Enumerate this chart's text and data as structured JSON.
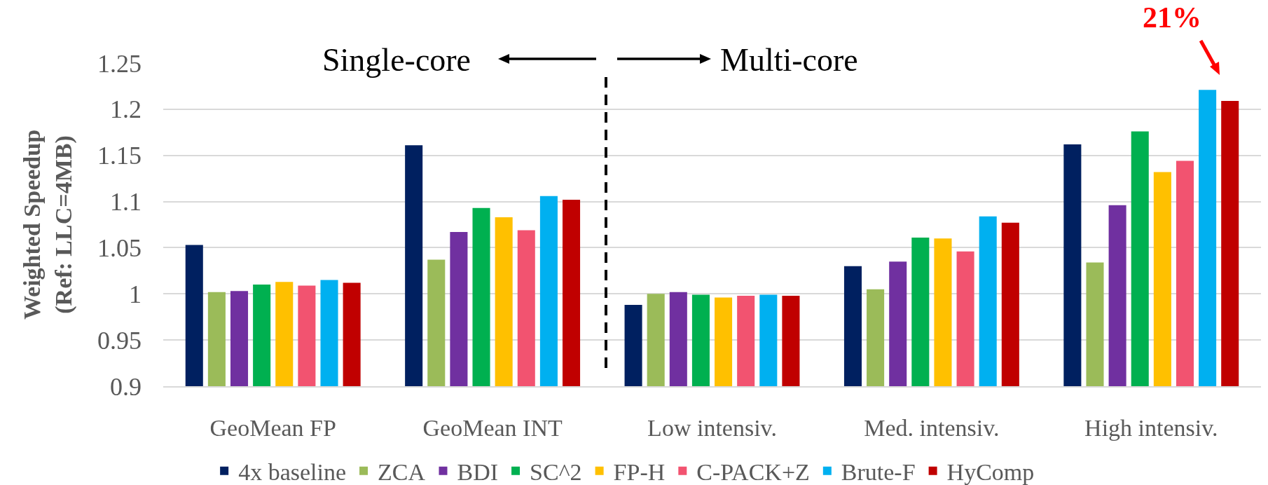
{
  "chart_data": {
    "type": "bar",
    "ylabel": "Weighted Speedup\n(Ref: LLC=4MB)",
    "categories": [
      "GeoMean FP",
      "GeoMean INT",
      "Low intensiv.",
      "Med. intensiv.",
      "High intensiv."
    ],
    "series": [
      {
        "name": "4x baseline",
        "color": "#002060",
        "values": [
          1.053,
          1.161,
          0.988,
          1.03,
          1.162
        ]
      },
      {
        "name": "ZCA",
        "color": "#9bbb59",
        "values": [
          1.002,
          1.037,
          1.0,
          1.005,
          1.034
        ]
      },
      {
        "name": "BDI",
        "color": "#7030a0",
        "values": [
          1.003,
          1.067,
          1.002,
          1.035,
          1.096
        ]
      },
      {
        "name": "SC^2",
        "color": "#00b050",
        "values": [
          1.01,
          1.093,
          0.999,
          1.061,
          1.176
        ]
      },
      {
        "name": "FP-H",
        "color": "#ffc000",
        "values": [
          1.013,
          1.083,
          0.996,
          1.06,
          1.132
        ]
      },
      {
        "name": "C-PACK+Z",
        "color": "#f25370",
        "values": [
          1.009,
          1.069,
          0.998,
          1.046,
          1.144
        ]
      },
      {
        "name": "Brute-F",
        "color": "#00b0f0",
        "values": [
          1.015,
          1.106,
          0.999,
          1.084,
          1.221
        ]
      },
      {
        "name": "HyComp",
        "color": "#c00000",
        "values": [
          1.012,
          1.102,
          0.998,
          1.077,
          1.209
        ]
      }
    ],
    "ylim": [
      0.9,
      1.25
    ],
    "yticks": [
      0.9,
      0.95,
      1,
      1.05,
      1.1,
      1.15,
      1.2,
      1.25
    ],
    "grid": "y",
    "legend": "bottom",
    "annotations": [
      "Single-core",
      "Multi-core",
      "21%"
    ]
  }
}
